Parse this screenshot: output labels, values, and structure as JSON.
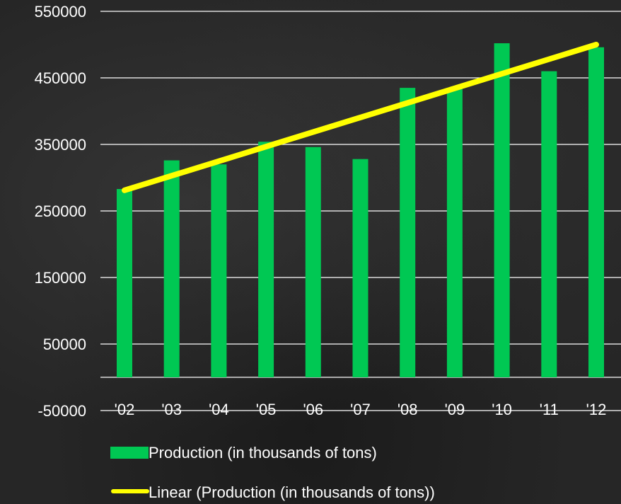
{
  "chart_data": {
    "type": "bar",
    "categories": [
      "'02",
      "'03",
      "'04",
      "'05",
      "'06",
      "'07",
      "'08",
      "'09",
      "'10",
      "'11",
      "'12"
    ],
    "series": [
      {
        "name": "Production (in thousands of tons)",
        "values": [
          283000,
          326000,
          320000,
          354000,
          346000,
          328000,
          435000,
          435000,
          502000,
          460000,
          496000
        ],
        "color": "#00c853"
      }
    ],
    "trendline": {
      "name": "Linear (Production (in thousands of tons))",
      "type": "linear",
      "start": 281000,
      "end": 500000,
      "color": "#ffff00"
    },
    "y_ticks": [
      "550000",
      "450000",
      "350000",
      "250000",
      "150000",
      "50000",
      "-50000"
    ],
    "ylim": [
      -50000,
      550000
    ],
    "grid": true,
    "legend_position": "bottom",
    "background_color": "#262626",
    "text_color": "#ffffff",
    "grid_color": "#ffffff"
  }
}
